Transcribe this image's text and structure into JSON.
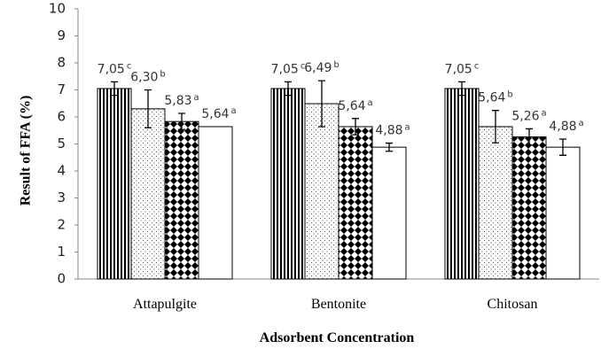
{
  "chart_data": {
    "type": "bar",
    "y_label": "Result of  FFA (%)",
    "x_label": "Adsorbent Concentration",
    "categories": [
      "Attapulgite",
      "Bentonite",
      "Chitosan"
    ],
    "ylim": [
      0,
      10
    ],
    "yticks": [
      0,
      1,
      2,
      3,
      4,
      5,
      6,
      7,
      8,
      9,
      10
    ],
    "series": [
      {
        "pattern": "vertical-lines",
        "values": [
          7.05,
          7.05,
          7.05
        ],
        "errors": [
          0.25,
          0.25,
          0.25
        ],
        "value_labels": [
          "7,05",
          "7,05",
          "7,05"
        ],
        "letters": [
          "c",
          "c",
          "c"
        ]
      },
      {
        "pattern": "dots",
        "values": [
          6.3,
          6.49,
          5.64
        ],
        "errors": [
          0.7,
          0.85,
          0.6
        ],
        "value_labels": [
          "6,30",
          "6,49",
          "5,64"
        ],
        "letters": [
          "b",
          "b",
          "b"
        ]
      },
      {
        "pattern": "checker",
        "values": [
          5.83,
          5.64,
          5.26
        ],
        "errors": [
          0.3,
          0.3,
          0.3
        ],
        "value_labels": [
          "5,83",
          "5,64",
          "5,26"
        ],
        "letters": [
          "a",
          "a",
          "a"
        ]
      },
      {
        "pattern": "plain",
        "values": [
          5.64,
          4.88,
          4.88
        ],
        "errors": [
          null,
          0.15,
          0.3
        ],
        "value_labels": [
          "5,64",
          "4,88",
          "4,88"
        ],
        "letters": [
          "a",
          "a",
          "a"
        ]
      }
    ]
  }
}
